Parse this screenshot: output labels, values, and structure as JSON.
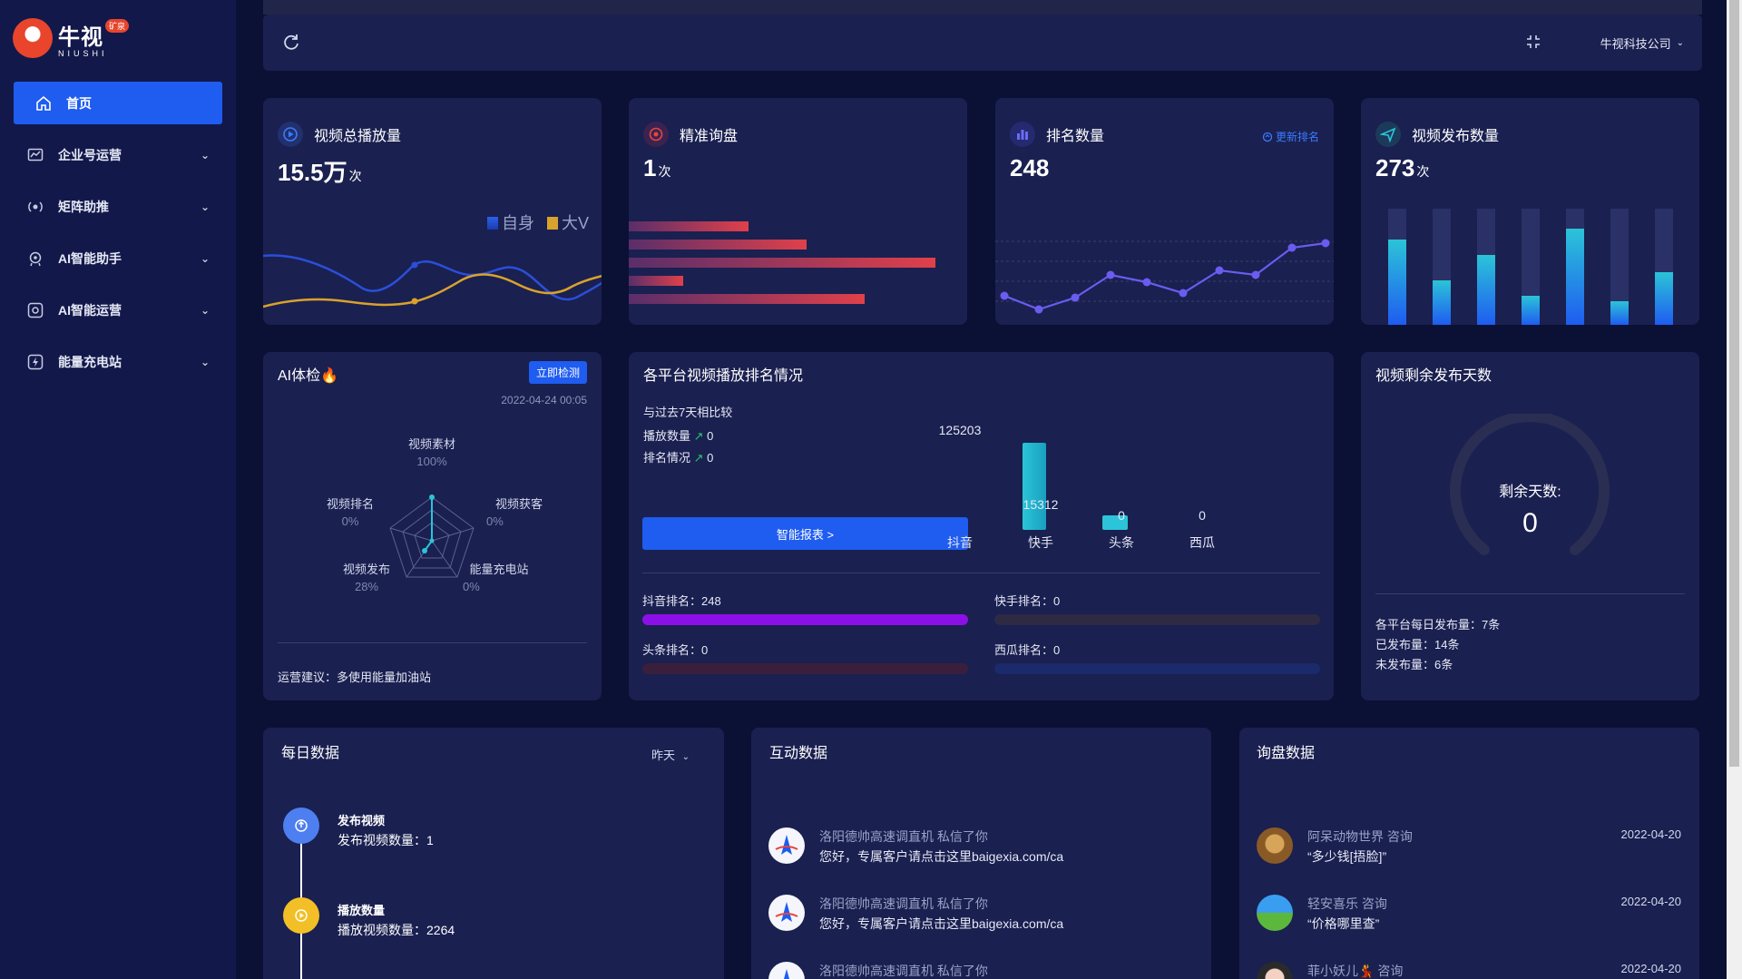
{
  "brand": {
    "name": "牛视",
    "badge": "矿泉",
    "en": "NIUSHI"
  },
  "sidebar": {
    "items": [
      {
        "label": "首页",
        "icon": "home-icon",
        "active": true
      },
      {
        "label": "企业号运营",
        "icon": "chart-icon"
      },
      {
        "label": "矩阵助推",
        "icon": "broadcast-icon"
      },
      {
        "label": "AI智能助手",
        "icon": "robot-icon"
      },
      {
        "label": "AI智能运营",
        "icon": "ai-icon"
      },
      {
        "label": "能量充电站",
        "icon": "charge-icon"
      }
    ]
  },
  "topbar": {
    "company": "牛视科技公司"
  },
  "stats": {
    "plays": {
      "title": "视频总播放量",
      "value": "15.5万",
      "unit": "次",
      "legend_self": "自身",
      "legend_big": "大V"
    },
    "inquiry": {
      "title": "精准询盘",
      "value": "1",
      "unit": "次"
    },
    "rank": {
      "title": "排名数量",
      "value": "248",
      "link": "更新排名"
    },
    "publish": {
      "title": "视频发布数量",
      "value": "273",
      "unit": "次"
    }
  },
  "colors": {
    "accent": "#1f5cf0",
    "cyan": "#2bc4d8",
    "orange": "#f5a623",
    "purple": "#8d0fe8"
  },
  "ai_check": {
    "title": "AI体检",
    "button": "立即检测",
    "date": "2022-04-24 00:05",
    "radar": [
      {
        "label": "视频素材",
        "pct": "100%"
      },
      {
        "label": "视频获客",
        "pct": "0%"
      },
      {
        "label": "能量充电站",
        "pct": "0%"
      },
      {
        "label": "视频发布",
        "pct": "28%"
      },
      {
        "label": "视频排名",
        "pct": "0%"
      }
    ],
    "advice": "运营建议：多使用能量加油站"
  },
  "ranking": {
    "title": "各平台视频播放排名情况",
    "compare": "与过去7天相比较",
    "play_label": "播放数量",
    "play_val": "0",
    "rank_label": "排名情况",
    "rank_val": "0",
    "report_btn": "智能报表 >",
    "platforms": [
      {
        "name": "抖音",
        "value": "125203"
      },
      {
        "name": "快手",
        "value": "15312"
      },
      {
        "name": "头条",
        "value": "0"
      },
      {
        "name": "西瓜",
        "value": "0"
      }
    ],
    "ranks": [
      {
        "label": "抖音排名：248"
      },
      {
        "label": "快手排名：0"
      },
      {
        "label": "头条排名：0"
      },
      {
        "label": "西瓜排名：0"
      }
    ]
  },
  "remaining": {
    "title": "视频剩余发布天数",
    "gauge_label": "剩余天数:",
    "gauge_value": "0",
    "lines": [
      "各平台每日发布量：7条",
      "已发布量：14条",
      "未发布量：6条"
    ]
  },
  "daily": {
    "title": "每日数据",
    "filter": "昨天",
    "items": [
      {
        "title": "发布视频",
        "desc": "发布视频数量：1"
      },
      {
        "title": "播放数量",
        "desc": "播放视频数量：2264"
      }
    ]
  },
  "interaction": {
    "title": "互动数据",
    "items": [
      {
        "name": "洛阳德帅高速调直机 私信了你",
        "body": "您好，专属客户请点击这里baigexia.com/ca"
      },
      {
        "name": "洛阳德帅高速调直机 私信了你",
        "body": "您好，专属客户请点击这里baigexia.com/ca"
      },
      {
        "name": "洛阳德帅高速调直机 私信了你",
        "body": ""
      }
    ]
  },
  "inquiries": {
    "title": "询盘数据",
    "items": [
      {
        "name": "阿呆动物世界 咨询",
        "body": "“多少钱[捂脸]”",
        "date": "2022-04-20"
      },
      {
        "name": "轻安喜乐 咨询",
        "body": "“价格哪里查”",
        "date": "2022-04-20"
      },
      {
        "name": "菲小妖儿💃 咨询",
        "body": "",
        "date": "2022-04-20"
      }
    ]
  }
}
